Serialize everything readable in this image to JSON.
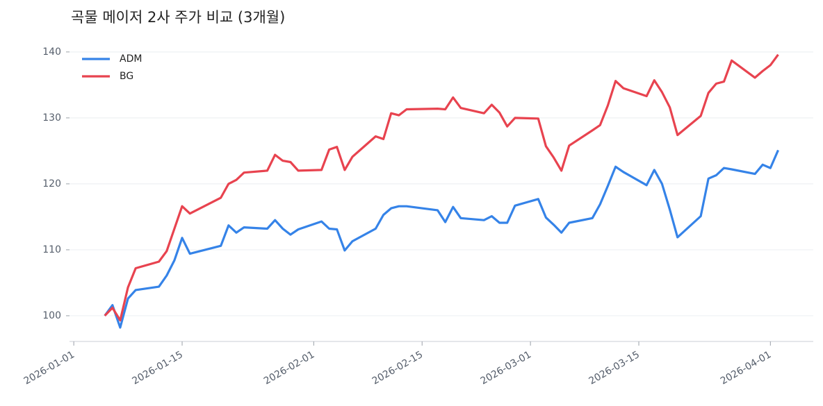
{
  "chart_data": {
    "type": "line",
    "title": "곡물 메이저 2사 주가 비교 (3개월)",
    "x": [
      "2026-01-05",
      "2026-01-06",
      "2026-01-07",
      "2026-01-08",
      "2026-01-09",
      "2026-01-12",
      "2026-01-13",
      "2026-01-14",
      "2026-01-15",
      "2026-01-16",
      "2026-01-20",
      "2026-01-21",
      "2026-01-22",
      "2026-01-23",
      "2026-01-26",
      "2026-01-27",
      "2026-01-28",
      "2026-01-29",
      "2026-01-30",
      "2026-02-02",
      "2026-02-03",
      "2026-02-04",
      "2026-02-05",
      "2026-02-06",
      "2026-02-09",
      "2026-02-10",
      "2026-02-11",
      "2026-02-12",
      "2026-02-13",
      "2026-02-17",
      "2026-02-18",
      "2026-02-19",
      "2026-02-20",
      "2026-02-23",
      "2026-02-24",
      "2026-02-25",
      "2026-02-26",
      "2026-02-27",
      "2026-03-02",
      "2026-03-03",
      "2026-03-04",
      "2026-03-05",
      "2026-03-06",
      "2026-03-09",
      "2026-03-10",
      "2026-03-11",
      "2026-03-12",
      "2026-03-13",
      "2026-03-16",
      "2026-03-17",
      "2026-03-18",
      "2026-03-19",
      "2026-03-20",
      "2026-03-23",
      "2026-03-24",
      "2026-03-25",
      "2026-03-26",
      "2026-03-27",
      "2026-03-30",
      "2026-03-31",
      "2026-04-01",
      "2026-04-02"
    ],
    "series": [
      {
        "name": "ADM",
        "color": "#3583e8",
        "values": [
          100,
          101.6,
          98.2,
          102.6,
          103.9,
          104.4,
          106.1,
          108.4,
          111.8,
          109.4,
          110.6,
          113.7,
          112.6,
          113.4,
          113.2,
          114.5,
          113.2,
          112.3,
          113.1,
          114.3,
          113.2,
          113.1,
          109.9,
          111.3,
          113.2,
          115.3,
          116.3,
          116.6,
          116.6,
          116.0,
          114.2,
          116.5,
          114.8,
          114.5,
          115.1,
          114.1,
          114.1,
          116.7,
          117.7,
          114.9,
          113.8,
          112.6,
          114.1,
          114.8,
          116.9,
          119.7,
          122.6,
          121.8,
          119.8,
          122.1,
          120.0,
          116.1,
          111.9,
          115.1,
          120.8,
          121.3,
          122.4,
          122.2,
          121.5,
          122.9,
          122.4,
          125.1
        ]
      },
      {
        "name": "BG",
        "color": "#e8434f",
        "values": [
          100,
          101.2,
          99.3,
          104.3,
          107.2,
          108.2,
          109.8,
          113.2,
          116.6,
          115.5,
          117.9,
          120.0,
          120.6,
          121.7,
          122.0,
          124.4,
          123.5,
          123.3,
          122.0,
          122.1,
          125.2,
          125.6,
          122.1,
          124.1,
          127.2,
          126.8,
          130.7,
          130.4,
          131.3,
          131.4,
          131.3,
          133.1,
          131.5,
          130.7,
          132.0,
          130.8,
          128.7,
          130.0,
          129.9,
          125.7,
          124.0,
          122.0,
          125.8,
          128.1,
          128.9,
          131.9,
          135.6,
          134.5,
          133.3,
          135.7,
          133.9,
          131.6,
          127.4,
          130.3,
          133.8,
          135.2,
          135.5,
          138.7,
          136.1,
          137.1,
          138.0,
          139.6
        ]
      }
    ],
    "xlim": [
      "2025-12-31",
      "2026-04-06"
    ],
    "xticks": [
      "2026-01-01",
      "2026-01-15",
      "2026-02-01",
      "2026-02-15",
      "2026-03-01",
      "2026-03-15",
      "2026-04-01"
    ],
    "ylim": [
      96.1,
      140.3
    ],
    "yticks": [
      100,
      110,
      120,
      130,
      140
    ],
    "grid": true,
    "legend": "upper left"
  }
}
